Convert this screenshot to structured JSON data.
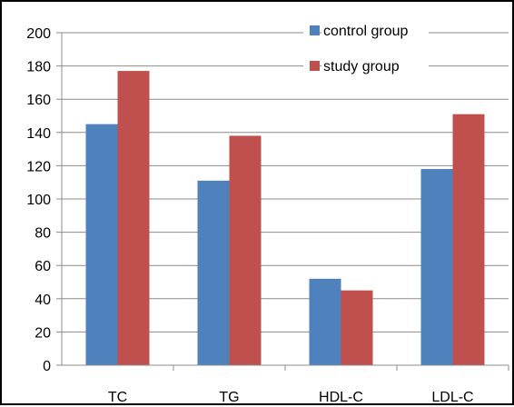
{
  "chart_data": {
    "type": "bar",
    "title": "",
    "xlabel": "",
    "ylabel": "",
    "categories": [
      "TC",
      "TG",
      "HDL-C",
      "LDL-C"
    ],
    "series": [
      {
        "name": "control group",
        "values": [
          145,
          111,
          52,
          118
        ],
        "color": "#4f81bd"
      },
      {
        "name": "study group",
        "values": [
          177,
          138,
          45,
          151
        ],
        "color": "#c0504d"
      }
    ],
    "ylim": [
      0,
      200
    ],
    "yticks": [
      0,
      20,
      40,
      60,
      80,
      100,
      120,
      140,
      160,
      180,
      200
    ],
    "grid": true,
    "legend": "top-right"
  }
}
